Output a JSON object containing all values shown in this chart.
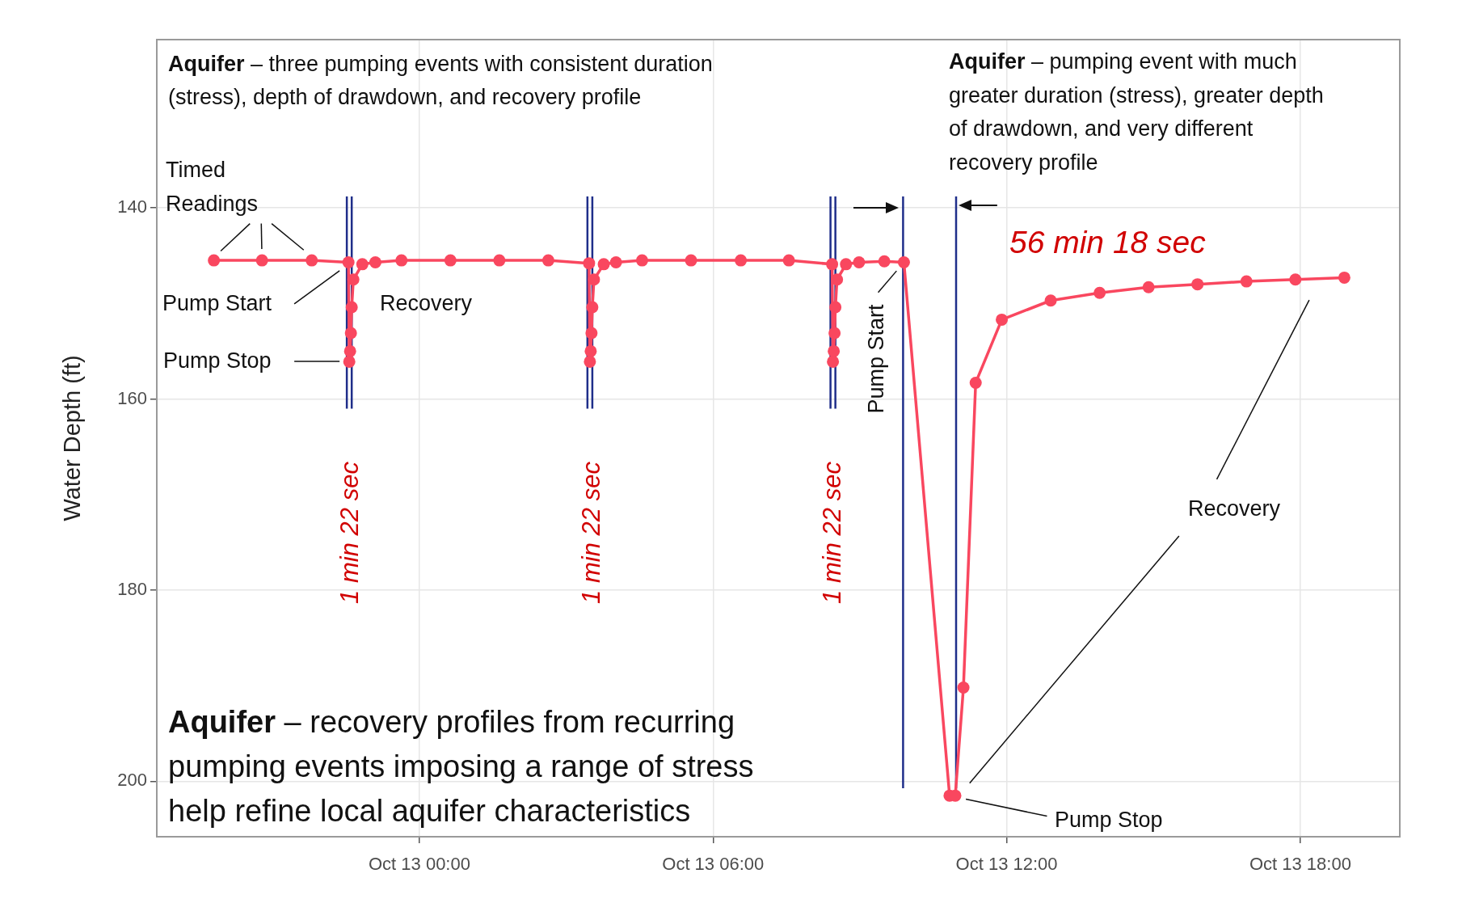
{
  "chart_data": {
    "type": "line",
    "ylabel": "Water Depth (ft)",
    "x": [
      "--10-12T19:48",
      "--10-12T20:47",
      "--10-12T21:48",
      "--10-12T22:33",
      "--10-12T22:34",
      "--10-12T22:35",
      "--10-12T22:36",
      "--10-12T22:37",
      "--10-12T22:39",
      "--10-12T22:50",
      "--10-12T23:06",
      "--10-12T23:38",
      "--10-13T00:38",
      "--10-13T01:38",
      "--10-13T02:38",
      "--10-13T03:28",
      "--10-13T03:29",
      "--10-13T03:30",
      "--10-13T03:31",
      "--10-13T03:32",
      "--10-13T03:34",
      "--10-13T03:46",
      "--10-13T04:01",
      "--10-13T04:33",
      "--10-13T05:33",
      "--10-13T06:34",
      "--10-13T07:33",
      "--10-13T08:26",
      "--10-13T08:27",
      "--10-13T08:28",
      "--10-13T08:29",
      "--10-13T08:30",
      "--10-13T08:32",
      "--10-13T08:43",
      "--10-13T08:59",
      "--10-13T09:30",
      "--10-13T09:54",
      "--10-13T10:50",
      "--10-13T10:57",
      "--10-13T11:07",
      "--10-13T11:22",
      "--10-13T11:54",
      "--10-13T12:54",
      "--10-13T13:54",
      "--10-13T14:54",
      "--10-13T15:54",
      "--10-13T16:54",
      "--10-13T17:54",
      "--10-13T18:54"
    ],
    "series": [
      {
        "color": "#f9475f",
        "values": [
          145.5,
          145.5,
          145.5,
          145.7,
          156.1,
          155.0,
          153.1,
          150.4,
          147.5,
          145.9,
          145.7,
          145.5,
          145.5,
          145.5,
          145.5,
          145.8,
          156.1,
          155.0,
          153.1,
          150.4,
          147.5,
          145.9,
          145.7,
          145.5,
          145.5,
          145.5,
          145.5,
          145.9,
          156.1,
          155.0,
          153.1,
          150.4,
          147.5,
          145.9,
          145.7,
          145.6,
          145.7,
          201.5,
          201.5,
          190.2,
          158.3,
          151.7,
          149.7,
          148.9,
          148.3,
          148.0,
          147.7,
          147.5,
          147.3
        ]
      }
    ],
    "xlim": [
      "--10-12T18:38",
      "--10-13T20:02"
    ],
    "xticks": [
      {
        "value": "--10-13T00:00",
        "label": "Oct 13 00:00"
      },
      {
        "value": "--10-13T06:00",
        "label": "Oct 13 06:00"
      },
      {
        "value": "--10-13T12:00",
        "label": "Oct 13 12:00"
      },
      {
        "value": "--10-13T18:00",
        "label": "Oct 13 18:00"
      }
    ],
    "ylim": [
      205.8,
      122.4
    ],
    "yticks": [
      140,
      160,
      180,
      200
    ],
    "ref_lines": [
      {
        "axis": "x",
        "value": "--10-12T22:31",
        "color": "#1f2e8a"
      },
      {
        "axis": "x",
        "value": "--10-12T22:37",
        "color": "#1f2e8a"
      },
      {
        "axis": "x",
        "value": "--10-13T03:26",
        "color": "#1f2e8a"
      },
      {
        "axis": "x",
        "value": "--10-13T03:32",
        "color": "#1f2e8a"
      },
      {
        "axis": "x",
        "value": "--10-13T08:24",
        "color": "#1f2e8a"
      },
      {
        "axis": "x",
        "value": "--10-13T08:30",
        "color": "#1f2e8a"
      },
      {
        "axis": "x",
        "value": "--10-13T09:53",
        "color": "#1f2e8a"
      },
      {
        "axis": "x",
        "value": "--10-13T10:58",
        "color": "#1f2e8a"
      }
    ],
    "annotations": [
      "Aquifer – three pumping events with consistent duration (stress), depth of drawdown, and recovery profile",
      "Aquifer – pumping event with much greater duration (stress), greater depth of drawdown, and very different recovery profile",
      "Aquifer – recovery profiles from recurring pumping events imposing a range of stress help refine local aquifer characteristics",
      {
        "text": "Timed Readings",
        "x": "--10-12T20:47",
        "y": 145.5
      },
      "Pump Start",
      "Pump Stop",
      "Recovery",
      "1 min 22 sec",
      "1 min 22 sec",
      "1 min 22 sec",
      {
        "text": "Pump Start",
        "x": "--10-13T09:54",
        "y": 145.7
      },
      "56 min 18 sec",
      "Recovery",
      "Pump Stop"
    ],
    "grid": true,
    "legend": false,
    "marker": "circle",
    "line_style": "solid"
  }
}
